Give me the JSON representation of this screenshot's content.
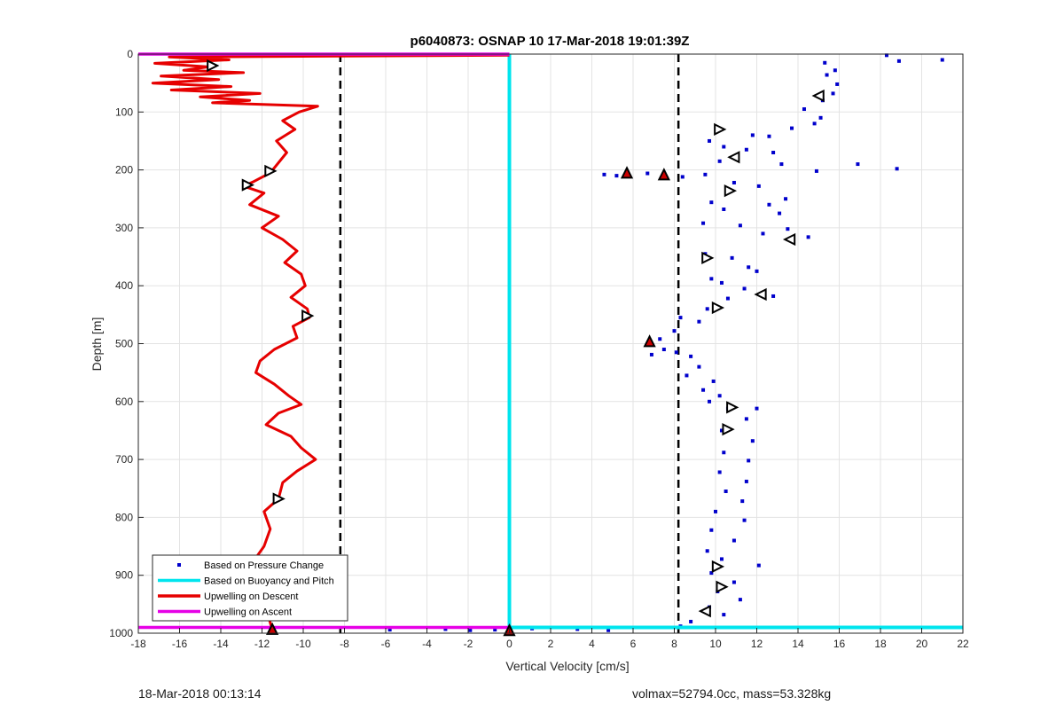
{
  "chart_data": {
    "type": "scatter",
    "title": "p6040873: OSNAP 10 17-Mar-2018 19:01:39Z",
    "xlabel": "Vertical Velocity [cm/s]",
    "ylabel": "Depth [m]",
    "xlim": [
      -18,
      22
    ],
    "ylim": [
      0,
      1000
    ],
    "y_reversed": true,
    "grid": true,
    "x_ticks": [
      -18,
      -16,
      -14,
      -12,
      -10,
      -8,
      -6,
      -4,
      -2,
      0,
      2,
      4,
      6,
      8,
      10,
      12,
      14,
      16,
      18,
      20,
      22
    ],
    "y_ticks": [
      0,
      100,
      200,
      300,
      400,
      500,
      600,
      700,
      800,
      900,
      1000
    ],
    "legend_position": "bottom-left",
    "series": [
      {
        "name": "Based on Pressure Change",
        "kind": "points",
        "color": "#0000cc",
        "points": [
          [
            18.3,
            2
          ],
          [
            18.9,
            12
          ],
          [
            21,
            10
          ],
          [
            15.3,
            15
          ],
          [
            15.8,
            28
          ],
          [
            15.4,
            36
          ],
          [
            15.9,
            52
          ],
          [
            15.7,
            68
          ],
          [
            15.2,
            80
          ],
          [
            14.3,
            95
          ],
          [
            15.1,
            110
          ],
          [
            14.8,
            120
          ],
          [
            13.7,
            128
          ],
          [
            12.6,
            142
          ],
          [
            11.8,
            140
          ],
          [
            9.7,
            150
          ],
          [
            10.4,
            160
          ],
          [
            11.5,
            165
          ],
          [
            12.8,
            170
          ],
          [
            10.2,
            185
          ],
          [
            13.2,
            190
          ],
          [
            16.9,
            190
          ],
          [
            18.8,
            198
          ],
          [
            14.9,
            202
          ],
          [
            9.5,
            208
          ],
          [
            8.4,
            212
          ],
          [
            4.6,
            208
          ],
          [
            5.2,
            210
          ],
          [
            6.7,
            206
          ],
          [
            10.9,
            222
          ],
          [
            12.1,
            228
          ],
          [
            13.4,
            250
          ],
          [
            9.8,
            256
          ],
          [
            12.6,
            260
          ],
          [
            10.4,
            268
          ],
          [
            13.1,
            275
          ],
          [
            9.4,
            292
          ],
          [
            11.2,
            296
          ],
          [
            13.5,
            302
          ],
          [
            12.3,
            310
          ],
          [
            14.5,
            316
          ],
          [
            9.5,
            345
          ],
          [
            10.8,
            352
          ],
          [
            11.6,
            368
          ],
          [
            12.0,
            375
          ],
          [
            9.8,
            388
          ],
          [
            10.3,
            395
          ],
          [
            11.4,
            405
          ],
          [
            10.6,
            422
          ],
          [
            12.8,
            418
          ],
          [
            9.6,
            440
          ],
          [
            8.3,
            455
          ],
          [
            9.2,
            462
          ],
          [
            8.0,
            478
          ],
          [
            7.3,
            492
          ],
          [
            6.8,
            502
          ],
          [
            7.5,
            510
          ],
          [
            8.1,
            515
          ],
          [
            6.9,
            519
          ],
          [
            8.8,
            522
          ],
          [
            9.2,
            540
          ],
          [
            8.6,
            555
          ],
          [
            9.9,
            565
          ],
          [
            9.4,
            580
          ],
          [
            10.2,
            590
          ],
          [
            9.7,
            600
          ],
          [
            10.6,
            612
          ],
          [
            12.0,
            612
          ],
          [
            11.5,
            630
          ],
          [
            10.3,
            650
          ],
          [
            11.8,
            668
          ],
          [
            10.4,
            688
          ],
          [
            11.6,
            702
          ],
          [
            10.2,
            722
          ],
          [
            11.5,
            738
          ],
          [
            10.5,
            755
          ],
          [
            11.3,
            772
          ],
          [
            10.0,
            790
          ],
          [
            11.4,
            805
          ],
          [
            9.8,
            822
          ],
          [
            10.9,
            840
          ],
          [
            9.6,
            858
          ],
          [
            10.3,
            872
          ],
          [
            12.1,
            883
          ],
          [
            9.8,
            896
          ],
          [
            10.9,
            912
          ],
          [
            10.1,
            928
          ],
          [
            11.2,
            942
          ],
          [
            9.7,
            955
          ],
          [
            10.4,
            968
          ],
          [
            8.8,
            980
          ],
          [
            8.3,
            988
          ],
          [
            1.1,
            992
          ],
          [
            -0.7,
            994
          ],
          [
            -1.9,
            995
          ],
          [
            -3.1,
            993
          ],
          [
            -5.8,
            994
          ],
          [
            3.3,
            993
          ],
          [
            4.8,
            995
          ]
        ]
      },
      {
        "name": "Based on Buoyancy and Pitch",
        "kind": "line",
        "color": "#00e5ee",
        "points": [
          [
            0,
            0
          ],
          [
            0,
            990
          ],
          [
            22,
            990
          ]
        ]
      },
      {
        "name": "Upwelling on Descent",
        "kind": "line",
        "color": "#e60000",
        "points": [
          [
            0,
            2
          ],
          [
            -16.5,
            5
          ],
          [
            -13.6,
            10
          ],
          [
            -17.2,
            16
          ],
          [
            -14.6,
            22
          ],
          [
            -15.8,
            28
          ],
          [
            -12.9,
            32
          ],
          [
            -16.9,
            38
          ],
          [
            -14.1,
            44
          ],
          [
            -17.3,
            50
          ],
          [
            -13.5,
            56
          ],
          [
            -16.4,
            62
          ],
          [
            -12.1,
            68
          ],
          [
            -15.0,
            74
          ],
          [
            -12.6,
            80
          ],
          [
            -14.4,
            84
          ],
          [
            -9.3,
            90
          ],
          [
            -10.2,
            100
          ],
          [
            -11.0,
            115
          ],
          [
            -10.4,
            130
          ],
          [
            -11.3,
            150
          ],
          [
            -10.8,
            170
          ],
          [
            -11.6,
            205
          ],
          [
            -12.4,
            220
          ],
          [
            -12.9,
            228
          ],
          [
            -11.9,
            240
          ],
          [
            -12.6,
            260
          ],
          [
            -11.2,
            280
          ],
          [
            -12.0,
            300
          ],
          [
            -11.0,
            320
          ],
          [
            -10.3,
            340
          ],
          [
            -10.9,
            360
          ],
          [
            -10.1,
            380
          ],
          [
            -9.9,
            400
          ],
          [
            -10.6,
            420
          ],
          [
            -9.8,
            440
          ],
          [
            -9.7,
            455
          ],
          [
            -10.5,
            470
          ],
          [
            -10.3,
            490
          ],
          [
            -11.4,
            510
          ],
          [
            -12.1,
            530
          ],
          [
            -12.3,
            550
          ],
          [
            -11.4,
            570
          ],
          [
            -10.7,
            590
          ],
          [
            -10.1,
            605
          ],
          [
            -11.2,
            620
          ],
          [
            -11.8,
            640
          ],
          [
            -10.6,
            660
          ],
          [
            -10.1,
            680
          ],
          [
            -9.4,
            700
          ],
          [
            -10.3,
            720
          ],
          [
            -11.0,
            740
          ],
          [
            -11.2,
            768
          ],
          [
            -11.9,
            790
          ],
          [
            -11.6,
            820
          ],
          [
            -11.9,
            850
          ],
          [
            -12.5,
            880
          ],
          [
            -12.8,
            910
          ],
          [
            -12.3,
            940
          ],
          [
            -11.7,
            970
          ],
          [
            -11.5,
            994
          ]
        ]
      },
      {
        "name": "Upwelling on Ascent",
        "kind": "line",
        "color": "#e600e6",
        "segments": [
          [
            [
              -18,
              0
            ],
            [
              0,
              0
            ]
          ],
          [
            [
              -18,
              990
            ],
            [
              0,
              990
            ]
          ]
        ]
      }
    ],
    "reference_lines": [
      {
        "x": -8.2,
        "style": "dashed",
        "color": "#000000"
      },
      {
        "x": 8.2,
        "style": "dashed",
        "color": "#000000"
      }
    ],
    "markers": [
      {
        "x": -14.4,
        "y": 20,
        "shape": "triangle-right",
        "fill": "#ffffff"
      },
      {
        "x": -11.6,
        "y": 202,
        "shape": "triangle-right",
        "fill": "#ffffff"
      },
      {
        "x": -12.7,
        "y": 226,
        "shape": "triangle-right",
        "fill": "#ffffff"
      },
      {
        "x": -9.8,
        "y": 452,
        "shape": "triangle-right",
        "fill": "#ffffff"
      },
      {
        "x": -11.2,
        "y": 768,
        "shape": "triangle-right",
        "fill": "#ffffff"
      },
      {
        "x": -11.5,
        "y": 993,
        "shape": "triangle-up",
        "fill": "#cc0000"
      },
      {
        "x": 0,
        "y": 995,
        "shape": "triangle-up",
        "fill": "#cc0000"
      },
      {
        "x": 15.0,
        "y": 72,
        "shape": "triangle-left",
        "fill": "#ffffff"
      },
      {
        "x": 10.2,
        "y": 130,
        "shape": "triangle-right",
        "fill": "#ffffff"
      },
      {
        "x": 10.9,
        "y": 178,
        "shape": "triangle-left",
        "fill": "#ffffff"
      },
      {
        "x": 5.7,
        "y": 205,
        "shape": "triangle-up",
        "fill": "#cc0000"
      },
      {
        "x": 7.5,
        "y": 208,
        "shape": "triangle-up",
        "fill": "#cc0000"
      },
      {
        "x": 10.7,
        "y": 236,
        "shape": "triangle-right",
        "fill": "#ffffff"
      },
      {
        "x": 13.6,
        "y": 320,
        "shape": "triangle-left",
        "fill": "#ffffff"
      },
      {
        "x": 9.6,
        "y": 352,
        "shape": "triangle-right",
        "fill": "#ffffff"
      },
      {
        "x": 12.2,
        "y": 415,
        "shape": "triangle-left",
        "fill": "#ffffff"
      },
      {
        "x": 10.1,
        "y": 438,
        "shape": "triangle-right",
        "fill": "#ffffff"
      },
      {
        "x": 6.8,
        "y": 496,
        "shape": "triangle-up",
        "fill": "#cc0000"
      },
      {
        "x": 10.8,
        "y": 610,
        "shape": "triangle-right",
        "fill": "#ffffff"
      },
      {
        "x": 10.6,
        "y": 648,
        "shape": "triangle-right",
        "fill": "#ffffff"
      },
      {
        "x": 10.1,
        "y": 885,
        "shape": "triangle-right",
        "fill": "#ffffff"
      },
      {
        "x": 10.3,
        "y": 920,
        "shape": "triangle-right",
        "fill": "#ffffff"
      },
      {
        "x": 9.5,
        "y": 962,
        "shape": "triangle-left",
        "fill": "#ffffff"
      }
    ],
    "legend_entries": [
      {
        "label": "Based on Pressure Change",
        "kind": "point",
        "color": "#0000cc"
      },
      {
        "label": "Based on Buoyancy and Pitch",
        "kind": "line",
        "color": "#00e5ee"
      },
      {
        "label": "Upwelling on Descent",
        "kind": "line",
        "color": "#e60000"
      },
      {
        "label": "Upwelling on Ascent",
        "kind": "line",
        "color": "#e600e6"
      }
    ]
  },
  "footer": {
    "left": "18-Mar-2018 00:13:14",
    "right": "volmax=52794.0cc, mass=53.328kg"
  }
}
